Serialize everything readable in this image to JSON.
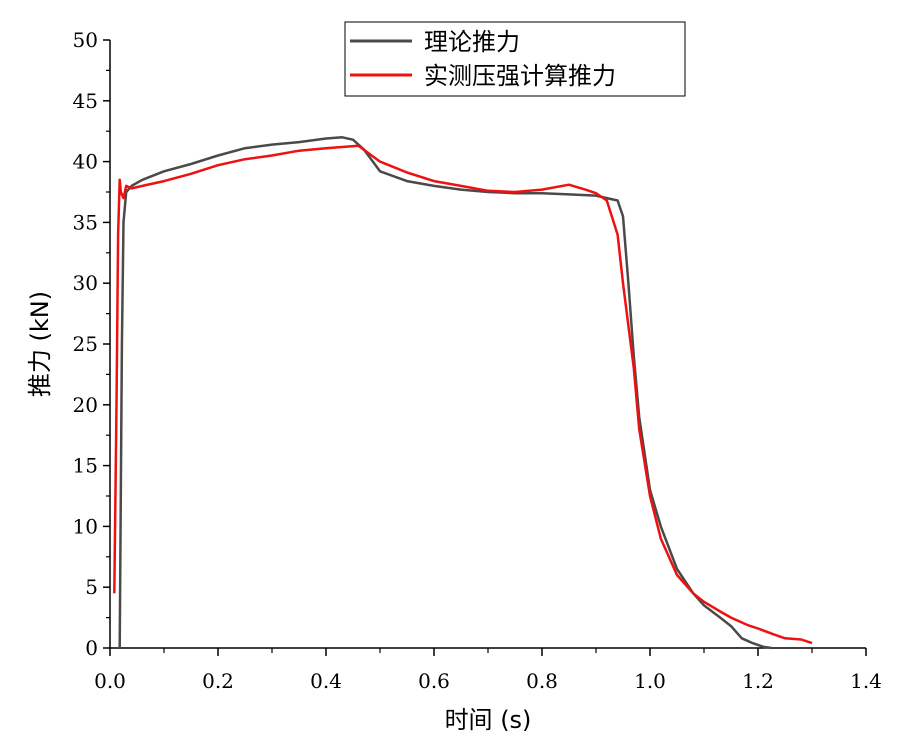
{
  "chart_data": {
    "type": "line",
    "xlabel": "时间 (s)",
    "ylabel": "推力 (kN)",
    "xlim": [
      0.0,
      1.4
    ],
    "ylim": [
      0,
      50
    ],
    "x_ticks": [
      "0.0",
      "0.2",
      "0.4",
      "0.6",
      "0.8",
      "1.0",
      "1.2",
      "1.4"
    ],
    "y_ticks": [
      "0",
      "5",
      "10",
      "15",
      "20",
      "25",
      "30",
      "35",
      "40",
      "45",
      "50"
    ],
    "grid": false,
    "legend_position": "top-center",
    "series": [
      {
        "name": "理论推力",
        "color": "#4a4a4a",
        "x": [
          0.018,
          0.022,
          0.025,
          0.03,
          0.04,
          0.06,
          0.1,
          0.15,
          0.2,
          0.25,
          0.3,
          0.35,
          0.4,
          0.43,
          0.45,
          0.47,
          0.5,
          0.55,
          0.6,
          0.65,
          0.7,
          0.75,
          0.8,
          0.85,
          0.9,
          0.92,
          0.94,
          0.95,
          0.96,
          0.97,
          0.98,
          1.0,
          1.02,
          1.05,
          1.08,
          1.1,
          1.13,
          1.15,
          1.17,
          1.19,
          1.21,
          1.225
        ],
        "y": [
          0,
          25,
          35,
          37.5,
          38,
          38.5,
          39.2,
          39.8,
          40.5,
          41.1,
          41.4,
          41.6,
          41.9,
          42.0,
          41.8,
          41.0,
          39.2,
          38.4,
          38.0,
          37.7,
          37.5,
          37.4,
          37.4,
          37.3,
          37.2,
          37.0,
          36.8,
          35.5,
          30.0,
          24.0,
          19.0,
          13.0,
          10.0,
          6.5,
          4.5,
          3.5,
          2.5,
          1.8,
          0.8,
          0.4,
          0.1,
          0
        ]
      },
      {
        "name": "实测压强计算推力",
        "color": "#ee1111",
        "x": [
          0.008,
          0.012,
          0.015,
          0.018,
          0.02,
          0.025,
          0.03,
          0.04,
          0.06,
          0.1,
          0.15,
          0.2,
          0.25,
          0.3,
          0.35,
          0.4,
          0.46,
          0.5,
          0.55,
          0.6,
          0.65,
          0.7,
          0.75,
          0.8,
          0.85,
          0.88,
          0.9,
          0.92,
          0.94,
          0.95,
          0.96,
          0.97,
          0.98,
          1.0,
          1.02,
          1.05,
          1.08,
          1.1,
          1.13,
          1.15,
          1.18,
          1.2,
          1.23,
          1.25,
          1.28,
          1.3
        ],
        "y": [
          4.5,
          20,
          34,
          38.5,
          37.5,
          37.0,
          38.0,
          37.8,
          38.0,
          38.4,
          39.0,
          39.7,
          40.2,
          40.5,
          40.9,
          41.1,
          41.3,
          40.0,
          39.1,
          38.4,
          38.0,
          37.6,
          37.5,
          37.7,
          38.1,
          37.7,
          37.4,
          36.8,
          34.0,
          30.0,
          26.5,
          23.0,
          18.0,
          12.5,
          9.0,
          6.0,
          4.5,
          3.8,
          3.0,
          2.5,
          1.9,
          1.6,
          1.1,
          0.8,
          0.7,
          0.4
        ]
      }
    ]
  }
}
